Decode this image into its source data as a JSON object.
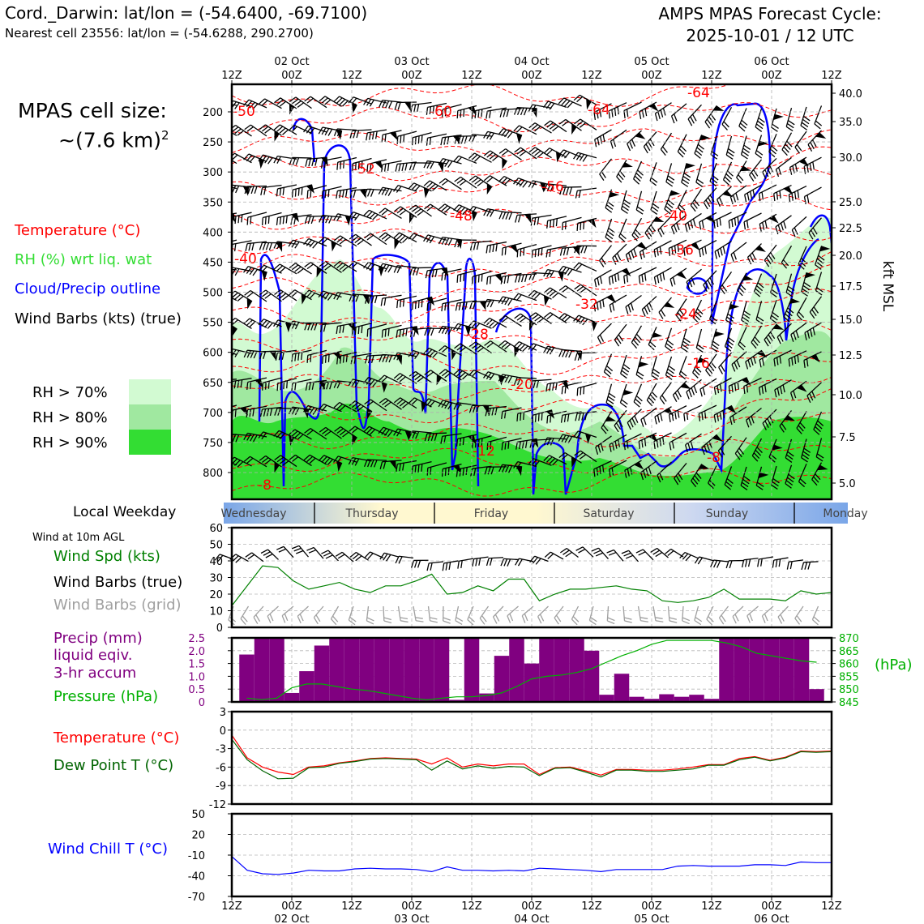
{
  "header": {
    "title_left": "Cord._Darwin: lat/lon = (-54.6400, -69.7100)",
    "subtitle_left": "Nearest cell 23556: lat/lon = (-54.6288, 290.2700)",
    "title_right_1": "AMPS MPAS Forecast Cycle:",
    "title_right_2": "2025-10-01 / 12 UTC"
  },
  "legend": {
    "cell_size_1": "MPAS cell size:",
    "cell_size_2": "~(7.6 km)",
    "cell_size_exp": "2",
    "temperature": "Temperature (°C)",
    "rh": "RH (%) wrt liq. wat",
    "cloud": "Cloud/Precip outline",
    "barbs": "Wind Barbs (kts) (true)",
    "rh70": "RH > 70%",
    "rh80": "RH > 80%",
    "rh90": "RH > 90%",
    "local_weekday": "Local Weekday",
    "wind_10m": "Wind at 10m AGL",
    "wind_spd": "Wind Spd (kts)",
    "wind_barbs_true": "Wind Barbs (true)",
    "wind_barbs_grid": "Wind Barbs (grid)",
    "precip_1": "Precip (mm)",
    "precip_2": "liquid eqiv.",
    "precip_3": "3-hr accum",
    "pressure": "Pressure (hPa)",
    "temp2": "Temperature (°C)",
    "dewpoint": "Dew Point T (°C)",
    "windchill": "Wind Chill T (°C)"
  },
  "colors": {
    "rh70": "#d2fad2",
    "rh80": "#a0e8a0",
    "rh90": "#33dd33",
    "temp": "#ff0000",
    "cloud": "#0000ff",
    "precip": "#800080",
    "pressure": "#00b000",
    "dewpoint": "#006400",
    "windspd": "#008000",
    "windchill": "#0000ff",
    "barb_grid": "#a0a0a0"
  },
  "time_axis": {
    "top_labels": [
      "12Z",
      "00Z",
      "12Z",
      "00Z",
      "12Z",
      "00Z",
      "12Z",
      "00Z",
      "12Z",
      "00Z",
      "12Z"
    ],
    "date_labels": [
      "02 Oct",
      "03 Oct",
      "04 Oct",
      "05 Oct",
      "06 Oct"
    ],
    "weekdays": [
      "Wednesday",
      "Thursday",
      "Friday",
      "Saturday",
      "Sunday",
      "Monday"
    ]
  },
  "chart_data": [
    {
      "type": "heatmap",
      "name": "time-height cross section",
      "y_left_ticks": [
        "200",
        "250",
        "300",
        "350",
        "400",
        "450",
        "500",
        "550",
        "600",
        "650",
        "700",
        "750",
        "800"
      ],
      "y_right_ticks": [
        "40.0",
        "35.0",
        "30.0",
        "25.0",
        "22.5",
        "20.0",
        "17.5",
        "15.0",
        "12.5",
        "10.0",
        "7.5",
        "5.0"
      ],
      "y_right_label": "kft MSL",
      "temperature_labels": [
        "-60",
        "-64",
        "-64",
        "-52",
        "-56",
        "-48",
        "-40",
        "-36",
        "-32",
        "-24",
        "-28",
        "-20",
        "-16",
        "-12",
        "-8",
        "-8",
        "-50",
        "-40"
      ],
      "grid": true
    },
    {
      "type": "line",
      "name": "wind speed 10m",
      "ylim": [
        0,
        60
      ],
      "y_ticks": [
        "0",
        "10",
        "20",
        "30",
        "40",
        "50",
        "60"
      ],
      "values": [
        13,
        25,
        37,
        36,
        28,
        23,
        25,
        27,
        23,
        21,
        25,
        25,
        28,
        32,
        20,
        21,
        25,
        22,
        29,
        29,
        16,
        20,
        23,
        23,
        24,
        25,
        23,
        22,
        16,
        15,
        16,
        18,
        23,
        17,
        17,
        17,
        16,
        22,
        20,
        21
      ]
    },
    {
      "type": "bar",
      "name": "precip and pressure",
      "ylim": [
        0,
        2.5
      ],
      "y_ticks": [
        "0",
        "0.5",
        "1.0",
        "1.5",
        "2.0",
        "2.5"
      ],
      "y2_ticks": [
        "845",
        "850",
        "855",
        "860",
        "865",
        "870"
      ],
      "y2_label": "(hPa)",
      "values": [
        1.85,
        2.5,
        2.5,
        0.35,
        1.2,
        2.2,
        2.5,
        2.5,
        2.5,
        2.5,
        2.5,
        2.5,
        2.5,
        2.5,
        0.08,
        2.5,
        0.33,
        1.8,
        2.5,
        1.5,
        2.5,
        2.5,
        2.5,
        2.0,
        0.28,
        1.1,
        0.2,
        0.12,
        0.3,
        0.2,
        0.28,
        0.12,
        2.5,
        2.5,
        2.5,
        2.5,
        2.5,
        2.5,
        0.5
      ],
      "pressure": [
        846.5,
        845.9,
        846.5,
        850.5,
        852,
        852,
        851,
        850,
        849.5,
        848.5,
        847.5,
        846.5,
        845.8,
        846.5,
        847,
        847,
        847.5,
        848.5,
        851,
        854,
        855,
        855.5,
        856.5,
        858,
        860.5,
        863,
        865,
        867.5,
        869,
        869,
        869,
        869,
        868,
        866.5,
        864,
        863,
        862,
        861,
        860.5
      ]
    },
    {
      "type": "line",
      "name": "temperature and dew point",
      "ylim": [
        -12,
        3
      ],
      "y_ticks": [
        "3",
        "0",
        "-3",
        "-6",
        "-9",
        "-12"
      ],
      "series": [
        {
          "name": "Temperature (°C)",
          "values": [
            -0.8,
            -4.5,
            -6.0,
            -6.8,
            -7.2,
            -6.0,
            -5.8,
            -5.3,
            -5.0,
            -4.6,
            -4.5,
            -4.6,
            -4.7,
            -5.5,
            -4.5,
            -6.0,
            -5.5,
            -5.8,
            -5.5,
            -5.5,
            -7.2,
            -6.1,
            -6.0,
            -6.6,
            -7.3,
            -6.4,
            -6.4,
            -6.5,
            -6.5,
            -6.3,
            -6.0,
            -5.6,
            -5.6,
            -4.6,
            -4.3,
            -4.9,
            -4.4,
            -3.4,
            -3.5,
            -3.4
          ]
        },
        {
          "name": "Dew Point T (°C)",
          "values": [
            -1.5,
            -4.8,
            -6.6,
            -7.9,
            -7.8,
            -6.1,
            -6.0,
            -5.4,
            -5.1,
            -4.7,
            -4.6,
            -4.7,
            -4.8,
            -6.5,
            -5.0,
            -6.3,
            -5.8,
            -6.2,
            -5.9,
            -6.0,
            -7.4,
            -6.2,
            -6.1,
            -6.8,
            -7.6,
            -6.5,
            -6.5,
            -6.7,
            -6.7,
            -6.5,
            -6.3,
            -5.7,
            -5.7,
            -4.8,
            -4.4,
            -5.0,
            -4.5,
            -3.5,
            -3.6,
            -3.5
          ]
        }
      ]
    },
    {
      "type": "line",
      "name": "wind chill",
      "ylim": [
        -70,
        50
      ],
      "y_ticks": [
        "50",
        "20",
        "-10",
        "-40",
        "-70"
      ],
      "values": [
        -12,
        -32,
        -37,
        -38,
        -36,
        -32,
        -33,
        -33,
        -30,
        -29,
        -30,
        -30,
        -31,
        -34,
        -27,
        -32,
        -32,
        -33,
        -32,
        -33,
        -29,
        -30,
        -31,
        -32,
        -34,
        -31,
        -31,
        -31,
        -31,
        -26,
        -25,
        -26,
        -26,
        -26,
        -24,
        -24,
        -25,
        -20,
        -21,
        -21
      ]
    }
  ]
}
